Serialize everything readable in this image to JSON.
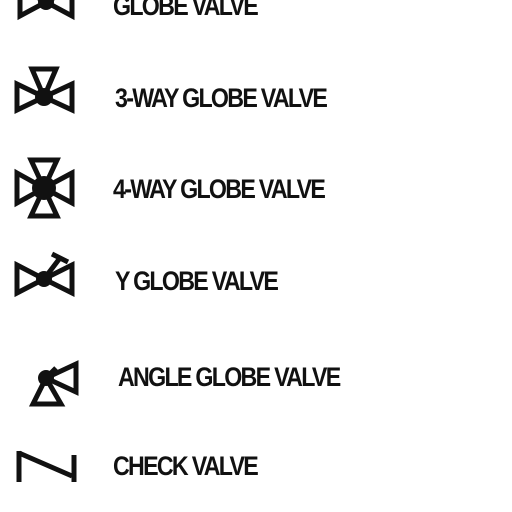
{
  "legend": {
    "items": [
      {
        "label": "GLOBE VALVE",
        "icon": "globe-valve-icon"
      },
      {
        "label": "3-WAY GLOBE VALVE",
        "icon": "three-way-globe-valve-icon"
      },
      {
        "label": "4-WAY GLOBE VALVE",
        "icon": "four-way-globe-valve-icon"
      },
      {
        "label": "Y GLOBE VALVE",
        "icon": "y-globe-valve-icon"
      },
      {
        "label": "ANGLE GLOBE VALVE",
        "icon": "angle-globe-valve-icon"
      },
      {
        "label": "CHECK VALVE",
        "icon": "check-valve-icon"
      }
    ]
  },
  "colors": {
    "ink": "#111111",
    "background": "#ffffff"
  }
}
